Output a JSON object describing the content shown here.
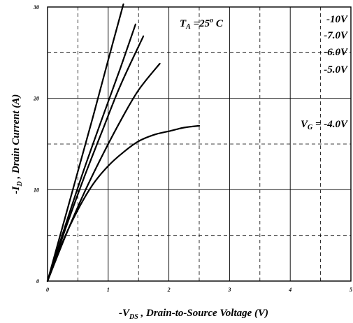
{
  "chart_data": {
    "type": "line",
    "title": "",
    "xlabel": {
      "prefix": "-V",
      "sub": "DS",
      "suffix": " , Drain-to-Source Voltage (V)"
    },
    "ylabel": {
      "prefix": "-I",
      "sub": "D",
      "suffix": " , Drain Current (A)"
    },
    "xlim": [
      0,
      5
    ],
    "ylim": [
      0,
      30
    ],
    "xticks": [
      0,
      1,
      2,
      3,
      4,
      5
    ],
    "yticks": [
      0,
      10,
      20,
      30
    ],
    "xminor": [
      0.5,
      1.5,
      2.5,
      3.5,
      4.5
    ],
    "yminor": [
      5,
      15,
      25
    ],
    "grid": true,
    "temperature_label": {
      "prefix": "T",
      "sub": "A",
      "mid": " =25",
      "sup": "o",
      "suffix": " C"
    },
    "gate_prefix": {
      "prefix": "V",
      "sub": "G",
      "suffix": " = "
    },
    "legend_labels": [
      "-10V",
      "-7.0V",
      "-6.0V",
      "-5.0V",
      "-4.0V"
    ],
    "series": [
      {
        "name": "-10V",
        "x": [
          0,
          0.25,
          0.5,
          0.75,
          1.0,
          1.25
        ],
        "y": [
          0,
          6.0,
          12.0,
          18.0,
          24.2,
          30.3
        ]
      },
      {
        "name": "-7.0V",
        "x": [
          0,
          0.3,
          0.6,
          0.9,
          1.2,
          1.45
        ],
        "y": [
          0,
          6.2,
          12.2,
          17.8,
          23.3,
          28.1
        ]
      },
      {
        "name": "-6.0V",
        "x": [
          0,
          0.3,
          0.6,
          0.9,
          1.2,
          1.58
        ],
        "y": [
          0,
          5.8,
          11.3,
          16.4,
          21.4,
          26.8
        ]
      },
      {
        "name": "-5.0V",
        "x": [
          0,
          0.3,
          0.6,
          0.9,
          1.2,
          1.5,
          1.85
        ],
        "y": [
          0,
          5.0,
          9.6,
          13.7,
          17.5,
          20.9,
          23.8
        ]
      },
      {
        "name": "-4.0V",
        "x": [
          0,
          0.25,
          0.5,
          0.75,
          1.0,
          1.25,
          1.5,
          1.75,
          2.0,
          2.25,
          2.5
        ],
        "y": [
          0,
          4.3,
          7.8,
          10.6,
          12.6,
          14.1,
          15.3,
          16.0,
          16.4,
          16.8,
          17.0
        ]
      }
    ]
  }
}
